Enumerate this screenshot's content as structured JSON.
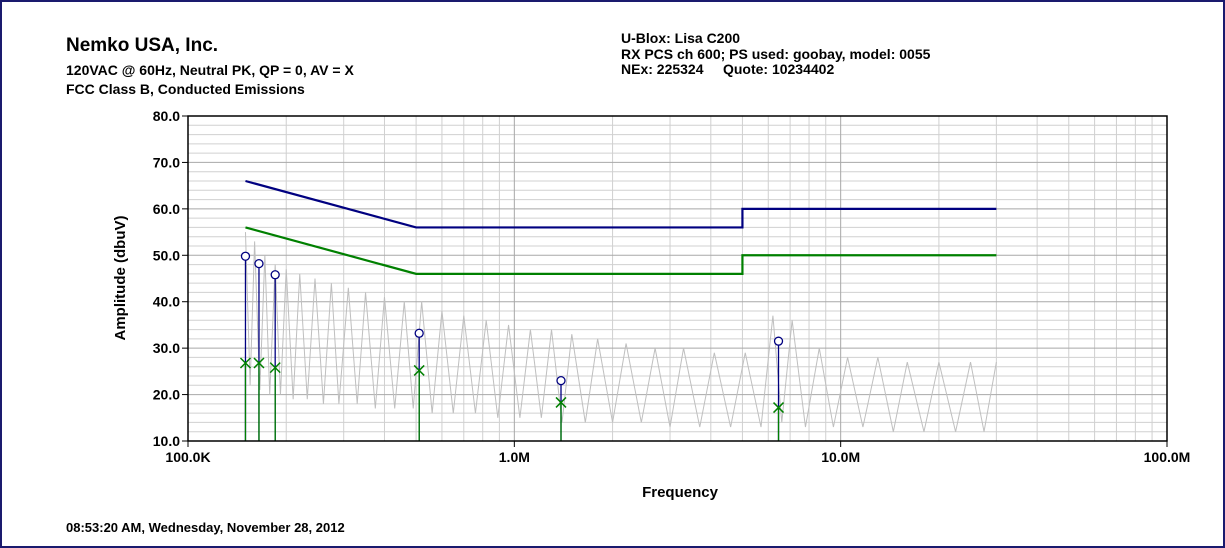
{
  "header": {
    "company": "Nemko USA, Inc.",
    "line1": "120VAC @ 60Hz, Neutral PK, QP = 0, AV = X",
    "line2": "FCC  Class B, Conducted Emissions",
    "right1": "U-Blox: Lisa C200",
    "right2": "RX PCS ch 600; PS used: goobay, model: 0055",
    "right3": "NEx: 225324     Quote: 10234402"
  },
  "footer": "08:53:20 AM, Wednesday, November 28, 2012",
  "chart_data": {
    "type": "line",
    "xscale": "log",
    "grid": true,
    "xlabel": "Frequency",
    "ylabel": "Amplitude (dbuV)",
    "xlim": [
      100000,
      100000000
    ],
    "ylim": [
      10,
      80
    ],
    "xticks": [
      {
        "value": 100000,
        "label": "100.0K"
      },
      {
        "value": 1000000,
        "label": "1.0M"
      },
      {
        "value": 10000000,
        "label": "10.0M"
      },
      {
        "value": 100000000,
        "label": "100.0M"
      }
    ],
    "yticks": [
      {
        "value": 10,
        "label": "10.0"
      },
      {
        "value": 20,
        "label": "20.0"
      },
      {
        "value": 30,
        "label": "30.0"
      },
      {
        "value": 40,
        "label": "40.0"
      },
      {
        "value": 50,
        "label": "50.0"
      },
      {
        "value": 60,
        "label": "60.0"
      },
      {
        "value": 70,
        "label": "70.0"
      },
      {
        "value": 80,
        "label": "80.0"
      }
    ],
    "xminorticks": [
      200000,
      300000,
      400000,
      500000,
      600000,
      700000,
      800000,
      900000,
      2000000,
      3000000,
      4000000,
      5000000,
      6000000,
      7000000,
      8000000,
      9000000,
      20000000,
      30000000,
      40000000,
      50000000,
      60000000,
      70000000,
      80000000,
      90000000
    ],
    "yminorticks": [
      12,
      14,
      16,
      18,
      22,
      24,
      26,
      28,
      32,
      34,
      36,
      38,
      42,
      44,
      46,
      48,
      52,
      54,
      56,
      58,
      62,
      64,
      66,
      68,
      72,
      74,
      76,
      78
    ],
    "series": [
      {
        "color": "#bfbfbf",
        "x": [
          150000,
          155000,
          160000,
          166000,
          172000,
          178000,
          185000,
          192000,
          200000,
          210000,
          220000,
          232000,
          245000,
          260000,
          275000,
          290000,
          310000,
          330000,
          350000,
          375000,
          400000,
          430000,
          460000,
          490000,
          520000,
          560000,
          600000,
          650000,
          700000,
          760000,
          820000,
          890000,
          960000,
          1040000,
          1120000,
          1210000,
          1300000,
          1400000,
          1500000,
          1650000,
          1800000,
          2000000,
          2200000,
          2450000,
          2700000,
          3000000,
          3300000,
          3700000,
          4100000,
          4600000,
          5100000,
          5700000,
          6200000,
          6600000,
          7100000,
          7800000,
          8600000,
          9500000,
          10500000,
          11700000,
          13000000,
          14500000,
          16000000,
          18000000,
          20000000,
          22500000,
          25000000,
          27500000,
          30000000
        ],
        "values": [
          55,
          22,
          53,
          21,
          50,
          20,
          48,
          20,
          47,
          19,
          46,
          19,
          45,
          18,
          44,
          18,
          43,
          18,
          42,
          17,
          41,
          17,
          40,
          17,
          40,
          16,
          38,
          16,
          37,
          16,
          36,
          15,
          35,
          15,
          34,
          15,
          34,
          14,
          33,
          14,
          32,
          14,
          31,
          14,
          30,
          13,
          30,
          13,
          29,
          13,
          29,
          13,
          37,
          14,
          36,
          13,
          30,
          13,
          28,
          13,
          28,
          12,
          27,
          12,
          27,
          12,
          27,
          12,
          27
        ]
      },
      {
        "color": "#000080",
        "x": [
          150000,
          500000,
          5000000,
          5000000,
          30000000
        ],
        "values": [
          66,
          56,
          56,
          60,
          60
        ]
      },
      {
        "color": "#008000",
        "x": [
          150000,
          500000,
          5000000,
          5000000,
          30000000
        ],
        "values": [
          56,
          46,
          46,
          50,
          50
        ]
      },
      {
        "color": "#000080",
        "marker": "o",
        "x": [
          150000,
          165000,
          185000,
          511000,
          1390000,
          6450000
        ],
        "values": [
          49.8,
          48.2,
          45.8,
          33.2,
          23,
          31.5
        ]
      },
      {
        "color": "#008000",
        "marker": "x",
        "x": [
          150000,
          165000,
          185000,
          511000,
          1390000,
          6450000
        ],
        "values": [
          26.8,
          26.8,
          25.8,
          25.2,
          18.3,
          17.2
        ]
      }
    ]
  }
}
